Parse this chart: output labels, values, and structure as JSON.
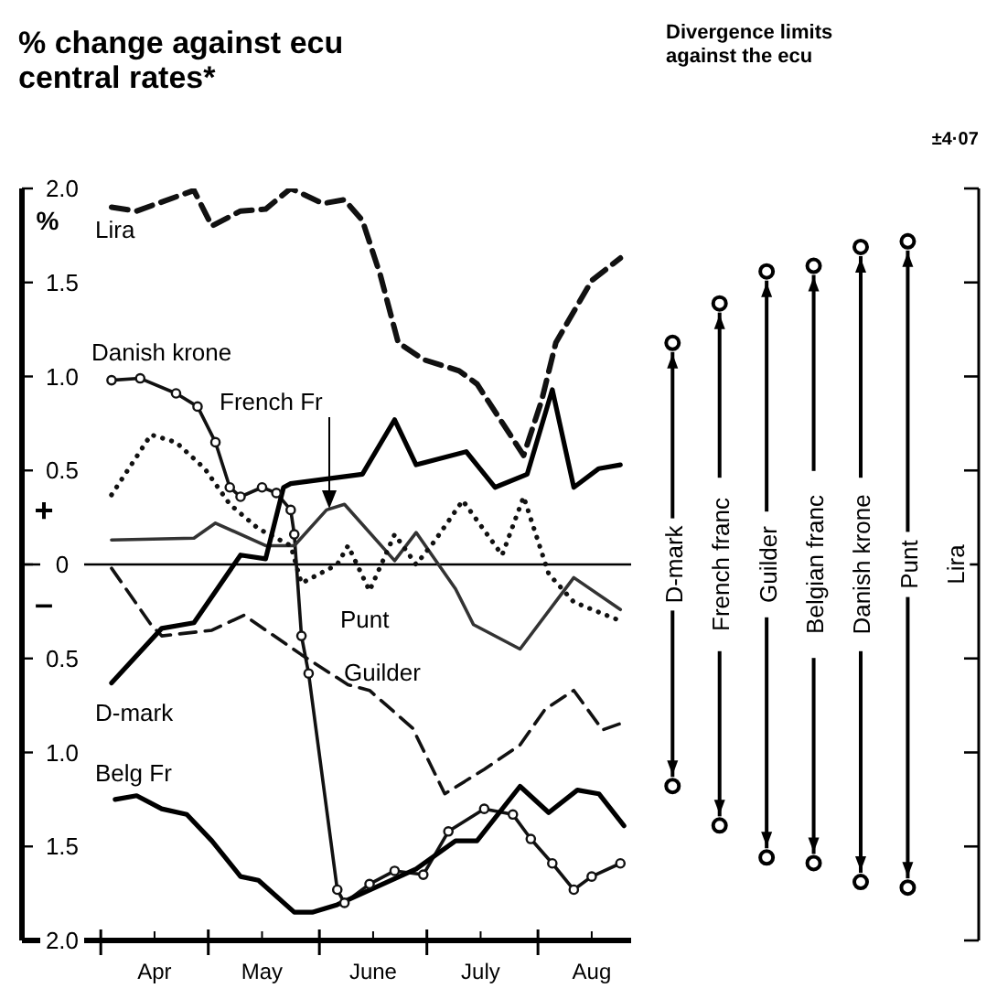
{
  "chart_data": [
    {
      "type": "line",
      "title": "% change against ecu central rates*",
      "ylabel": "%",
      "annotations": [
        "+",
        "–"
      ],
      "xlim": [
        "--03-10",
        "--08-27"
      ],
      "xticks": [
        {
          "value": "--04-01",
          "label": null
        },
        {
          "value": "--04-16",
          "label": "Apr"
        },
        {
          "value": "--05-01",
          "label": null
        },
        {
          "value": "--05-16",
          "label": "May"
        },
        {
          "value": "--06-01",
          "label": null
        },
        {
          "value": "--06-16",
          "label": "June"
        },
        {
          "value": "--07-01",
          "label": null
        },
        {
          "value": "--07-16",
          "label": "July"
        },
        {
          "value": "--08-01",
          "label": null
        },
        {
          "value": "--08-16",
          "label": "Aug"
        }
      ],
      "ylim": [
        -2,
        2
      ],
      "yticks": [
        {
          "value": 2,
          "label": "2.0"
        },
        {
          "value": 1.5,
          "label": "1.5"
        },
        {
          "value": 1,
          "label": "1.0"
        },
        {
          "value": 0.5,
          "label": "0.5"
        },
        0,
        {
          "value": -0.5,
          "label": "0.5"
        },
        {
          "value": -1,
          "label": "1.0"
        },
        {
          "value": -1.5,
          "label": "1.5"
        },
        {
          "value": -2,
          "label": "2.0"
        }
      ],
      "ref_lines": [
        {
          "axis": "y",
          "value": 0,
          "color": "#000000"
        }
      ],
      "series": [
        {
          "name": "Lira",
          "color": "#111111",
          "line_style": "dashed",
          "x": [
            "--04-04",
            "--04-11",
            "--04-27",
            "--05-02",
            "--05-10",
            "--05-17",
            "--05-24",
            "--06-02",
            "--06-08",
            "--06-13",
            "--06-18",
            "--06-23",
            "--06-30",
            "--07-10",
            "--07-15",
            "--07-28",
            "--08-02",
            "--08-06",
            "--08-16",
            "--08-24"
          ],
          "values": [
            1.9,
            1.88,
            1.99,
            1.8,
            1.88,
            1.89,
            2.0,
            1.92,
            1.94,
            1.83,
            1.54,
            1.18,
            1.09,
            1.03,
            0.96,
            0.58,
            0.87,
            1.18,
            1.51,
            1.63
          ]
        },
        {
          "name": "Danish krone",
          "color": "#111111",
          "marker": "circle",
          "x": [
            "--04-04",
            "--04-12",
            "--04-22",
            "--04-28",
            "--05-03",
            "--05-07",
            "--05-10",
            "--05-16",
            "--05-20",
            "--05-24",
            "--05-25",
            "--05-27",
            "--05-29",
            "--06-06",
            "--06-08",
            "--06-15",
            "--06-22",
            "--06-30",
            "--07-07",
            "--07-17",
            "--07-25",
            "--07-30",
            "--08-05",
            "--08-11",
            "--08-16",
            "--08-24"
          ],
          "values": [
            0.98,
            0.99,
            0.91,
            0.84,
            0.65,
            0.41,
            0.36,
            0.41,
            0.38,
            0.29,
            0.16,
            -0.38,
            -0.58,
            -1.73,
            -1.8,
            -1.7,
            -1.63,
            -1.65,
            -1.42,
            -1.3,
            -1.33,
            -1.46,
            -1.59,
            -1.73,
            -1.66,
            -1.59
          ]
        },
        {
          "name": "French Fr",
          "color": "#333333",
          "x": [
            "--04-04",
            "--04-27",
            "--05-03",
            "--05-17",
            "--05-25",
            "--06-03",
            "--06-08",
            "--06-22",
            "--06-28",
            "--07-09",
            "--07-14",
            "--07-27",
            "--08-11",
            "--08-24"
          ],
          "values": [
            0.13,
            0.14,
            0.22,
            0.1,
            0.1,
            0.29,
            0.32,
            0.02,
            0.17,
            -0.13,
            -0.32,
            -0.45,
            -0.07,
            -0.24
          ]
        },
        {
          "name": "Punt",
          "color": "#111111",
          "line_style": "dotted",
          "x": [
            "--04-04",
            "--04-15",
            "--04-22",
            "--04-30",
            "--05-07",
            "--05-15",
            "--05-24",
            "--05-27",
            "--06-06",
            "--06-09",
            "--06-15",
            "--06-22",
            "--06-28",
            "--07-03",
            "--07-11",
            "--07-22",
            "--07-28",
            "--08-04",
            "--08-11",
            "--08-24"
          ],
          "values": [
            0.37,
            0.69,
            0.65,
            0.51,
            0.32,
            0.19,
            0.1,
            -0.1,
            0.0,
            0.1,
            -0.14,
            0.16,
            0.0,
            0.12,
            0.34,
            0.05,
            0.36,
            -0.05,
            -0.2,
            -0.3
          ]
        },
        {
          "name": "Guilder",
          "color": "#111111",
          "line_style": "dashed",
          "x": [
            "--04-04",
            "--04-15",
            "--04-18",
            "--05-02",
            "--05-11",
            "--05-27",
            "--06-09",
            "--06-15",
            "--06-27",
            "--07-06",
            "--07-17",
            "--07-27",
            "--08-03",
            "--08-11",
            "--08-19",
            "--08-25"
          ],
          "values": [
            -0.02,
            -0.32,
            -0.38,
            -0.35,
            -0.27,
            -0.48,
            -0.64,
            -0.67,
            -0.87,
            -1.22,
            -1.09,
            -0.96,
            -0.77,
            -0.67,
            -0.88,
            -0.84
          ]
        },
        {
          "name": "D-mark",
          "color": "#000000",
          "x": [
            "--04-04",
            "--04-18",
            "--04-27",
            "--05-10",
            "--05-17",
            "--05-22",
            "--05-24",
            "--06-13",
            "--06-22",
            "--06-28",
            "--07-12",
            "--07-20",
            "--07-29",
            "--08-05",
            "--08-11",
            "--08-18",
            "--08-24"
          ],
          "values": [
            -0.63,
            -0.34,
            -0.31,
            0.05,
            0.03,
            0.41,
            0.43,
            0.48,
            0.77,
            0.53,
            0.6,
            0.41,
            0.48,
            0.93,
            0.41,
            0.51,
            0.53
          ]
        },
        {
          "name": "Belg Fr",
          "color": "#000000",
          "x": [
            "--04-05",
            "--04-11",
            "--04-18",
            "--04-25",
            "--05-02",
            "--05-10",
            "--05-15",
            "--05-25",
            "--05-30",
            "--06-06",
            "--06-28",
            "--07-09",
            "--07-15",
            "--07-27",
            "--08-04",
            "--08-12",
            "--08-18",
            "--08-25"
          ],
          "values": [
            -1.25,
            -1.23,
            -1.3,
            -1.33,
            -1.47,
            -1.66,
            -1.68,
            -1.85,
            -1.85,
            -1.81,
            -1.62,
            -1.47,
            -1.47,
            -1.18,
            -1.32,
            -1.2,
            -1.22,
            -1.39
          ]
        }
      ]
    },
    {
      "type": "bar",
      "title": "Divergence limits against the ecu",
      "categories": [
        "D-mark",
        "French franc",
        "Guilder",
        "Belgian franc",
        "Danish krone",
        "Punt",
        "Lira"
      ],
      "base": [
        -1.13,
        -1.34,
        -1.51,
        -1.54,
        -1.64,
        -1.67,
        null
      ],
      "values": [
        2.26,
        2.68,
        3.02,
        3.08,
        3.28,
        3.34,
        null
      ],
      "color": "#000000",
      "annotations": [
        "±4·07"
      ],
      "ylim": [
        -2,
        2
      ],
      "yticks": [
        2,
        1.5,
        1,
        0.5,
        0,
        -0.5,
        -1,
        -1.5,
        -2
      ],
      "tick_labels": "x"
    }
  ]
}
